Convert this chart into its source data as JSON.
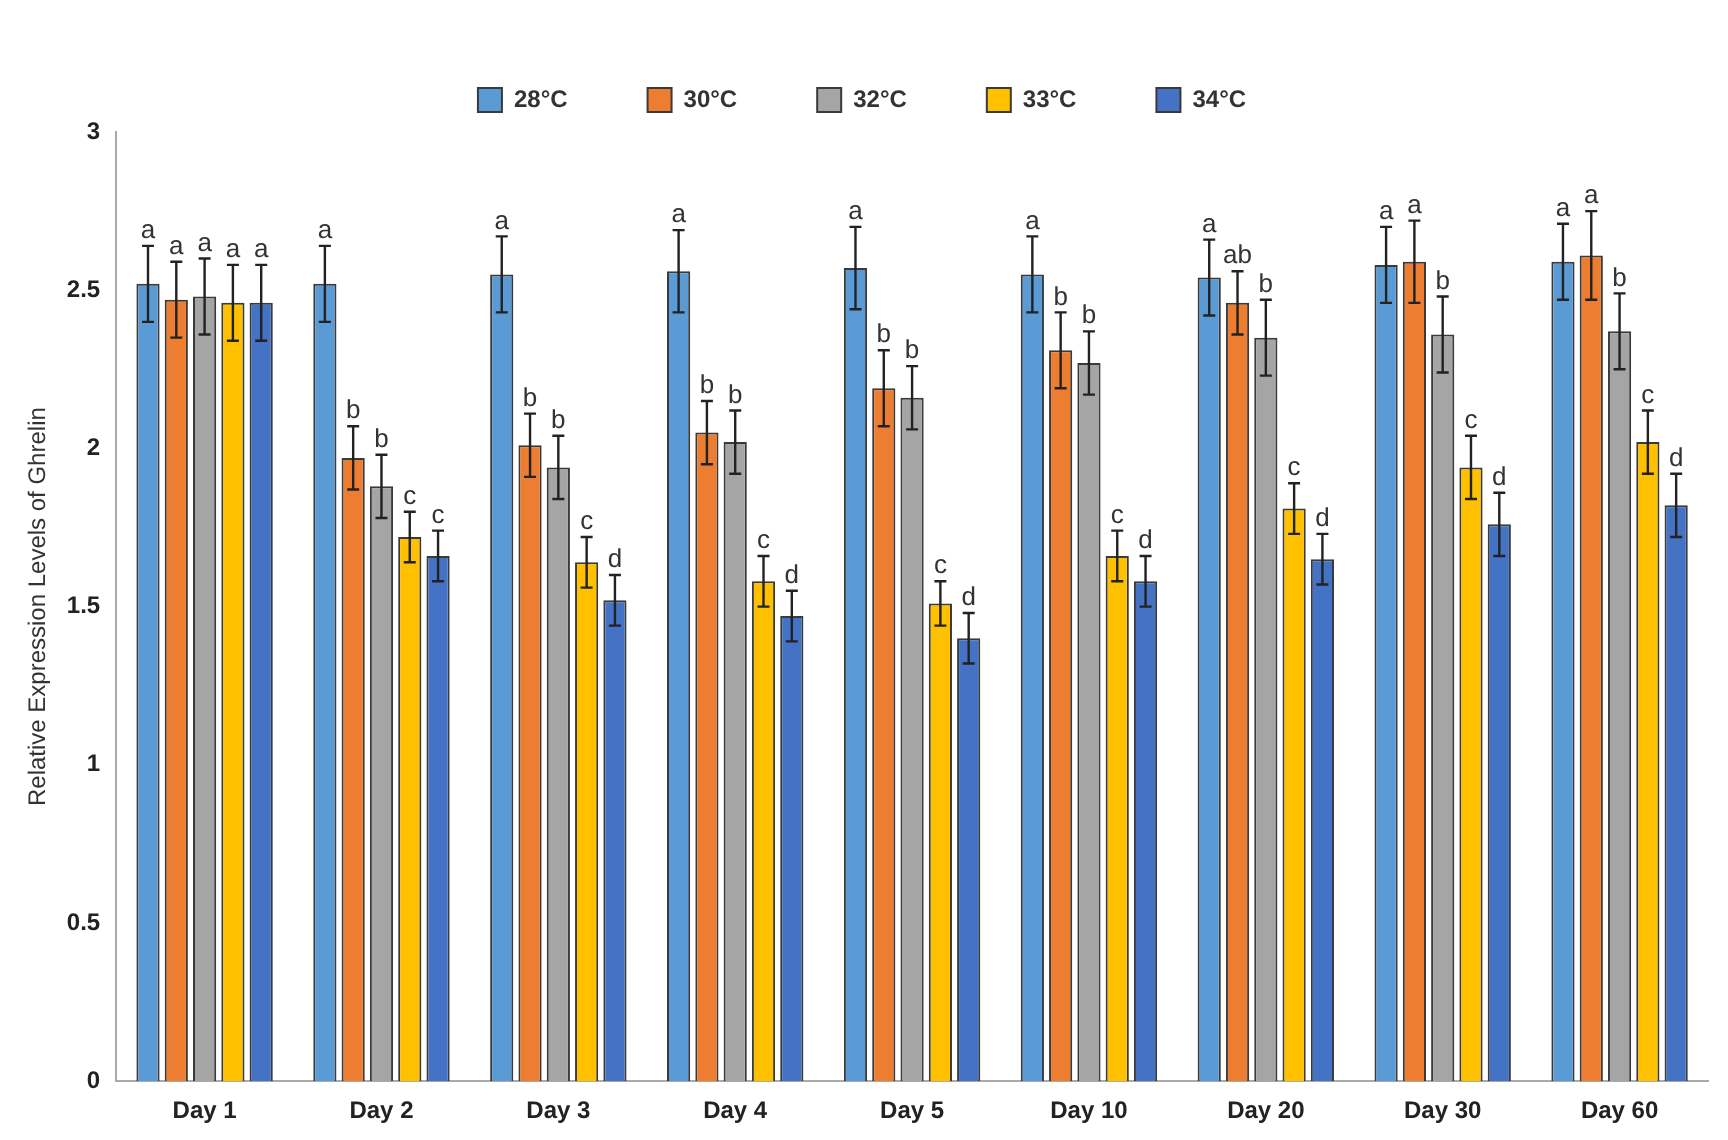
{
  "chart_data": {
    "type": "bar",
    "ylabel": "Relative Expression Levels of Ghrelin",
    "categories": [
      "Day 1",
      "Day 2",
      "Day 3",
      "Day 4",
      "Day 5",
      "Day 10",
      "Day 20",
      "Day 30",
      "Day 60"
    ],
    "series": [
      {
        "name": "28°C",
        "color": "#5b9bd5",
        "values": [
          2.52,
          2.52,
          2.55,
          2.56,
          2.57,
          2.55,
          2.54,
          2.58,
          2.59
        ],
        "errors": [
          0.12,
          0.12,
          0.12,
          0.13,
          0.13,
          0.12,
          0.12,
          0.12,
          0.12
        ],
        "value_labels": [
          "a",
          "a",
          "a",
          "a",
          "a",
          "a",
          "a",
          "a",
          "a"
        ]
      },
      {
        "name": "30°C",
        "color": "#ed7d31",
        "values": [
          2.47,
          1.97,
          2.01,
          2.05,
          2.19,
          2.31,
          2.46,
          2.59,
          2.61
        ],
        "errors": [
          0.12,
          0.1,
          0.1,
          0.1,
          0.12,
          0.12,
          0.1,
          0.13,
          0.14
        ],
        "value_labels": [
          "a",
          "b",
          "b",
          "b",
          "b",
          "b",
          "ab",
          "a",
          "a"
        ]
      },
      {
        "name": "32°C",
        "color": "#a5a5a5",
        "values": [
          2.48,
          1.88,
          1.94,
          2.02,
          2.16,
          2.27,
          2.35,
          2.36,
          2.37
        ],
        "errors": [
          0.12,
          0.1,
          0.1,
          0.1,
          0.1,
          0.1,
          0.12,
          0.12,
          0.12
        ],
        "value_labels": [
          "a",
          "b",
          "b",
          "b",
          "b",
          "b",
          "b",
          "b",
          "b"
        ]
      },
      {
        "name": "33°C",
        "color": "#ffc000",
        "values": [
          2.46,
          1.72,
          1.64,
          1.58,
          1.51,
          1.66,
          1.81,
          1.94,
          2.02
        ],
        "errors": [
          0.12,
          0.08,
          0.08,
          0.08,
          0.07,
          0.08,
          0.08,
          0.1,
          0.1
        ],
        "value_labels": [
          "a",
          "c",
          "c",
          "c",
          "c",
          "c",
          "c",
          "c",
          "c"
        ]
      },
      {
        "name": "34°C",
        "color": "#4472c4",
        "values": [
          2.46,
          1.66,
          1.52,
          1.47,
          1.4,
          1.58,
          1.65,
          1.76,
          1.82
        ],
        "errors": [
          0.12,
          0.08,
          0.08,
          0.08,
          0.08,
          0.08,
          0.08,
          0.1,
          0.1
        ],
        "value_labels": [
          "a",
          "c",
          "d",
          "d",
          "d",
          "d",
          "d",
          "d",
          "d"
        ]
      }
    ],
    "ylim": [
      0,
      3
    ],
    "yticks": [
      0,
      0.5,
      1,
      1.5,
      2,
      2.5,
      3
    ],
    "legend": "top",
    "grid": false
  }
}
